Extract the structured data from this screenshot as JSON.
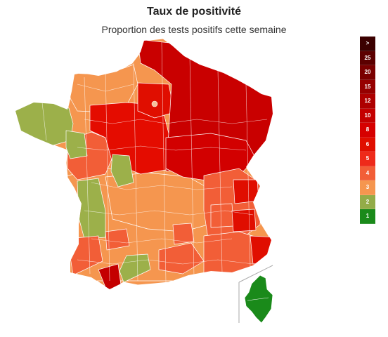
{
  "header": {
    "title": "Taux de positivité",
    "subtitle": "Proportion des tests positifs cette semaine"
  },
  "legend": {
    "bins": [
      {
        "label": ">",
        "color": "#3b0000"
      },
      {
        "label": "25",
        "color": "#5c0000"
      },
      {
        "label": "20",
        "color": "#7a0000"
      },
      {
        "label": "15",
        "color": "#960000"
      },
      {
        "label": "12",
        "color": "#ad0000"
      },
      {
        "label": "10",
        "color": "#c40000"
      },
      {
        "label": "8",
        "color": "#d60000"
      },
      {
        "label": "6",
        "color": "#e00e00"
      },
      {
        "label": "5",
        "color": "#ee2a1a"
      },
      {
        "label": "4",
        "color": "#f25e37"
      },
      {
        "label": "3",
        "color": "#f5964f"
      },
      {
        "label": "2",
        "color": "#93ac48"
      },
      {
        "label": "1",
        "color": "#1a8a1a"
      }
    ]
  },
  "map_regions": {
    "bretagne": {
      "color": "#9cb04a"
    },
    "loire_west": {
      "color": "#9cb04a"
    },
    "nouvelle_aquitaine_coast": {
      "color": "#9cb04a"
    },
    "centre_small": {
      "color": "#9cb04a"
    },
    "occitanie_small": {
      "color": "#9cb04a"
    },
    "normandie_coast": {
      "color": "#f5964f"
    },
    "pays_de_la_loire": {
      "color": "#f25e37"
    },
    "centre_val_de_loire": {
      "color": "#e40c00"
    },
    "auvergne_limousin": {
      "color": "#f5964f"
    },
    "sud_ouest": {
      "color": "#f5964f"
    },
    "pyrenees_atlantiques": {
      "color": "#f25e37"
    },
    "pyrenees_east": {
      "color": "#f25e37"
    },
    "hautes_pyrenees": {
      "color": "#c40000"
    },
    "nord_est": {
      "color": "#c90000"
    },
    "bourgogne_franche_comte": {
      "color": "#d20000"
    },
    "rhone_alpes": {
      "color": "#f25e37"
    },
    "provence": {
      "color": "#f25e37"
    },
    "alpes_maritimes": {
      "color": "#e00e00"
    },
    "paris_region": {
      "color": "#e00e00"
    },
    "corse": {
      "color": "#1a8a1a"
    }
  }
}
